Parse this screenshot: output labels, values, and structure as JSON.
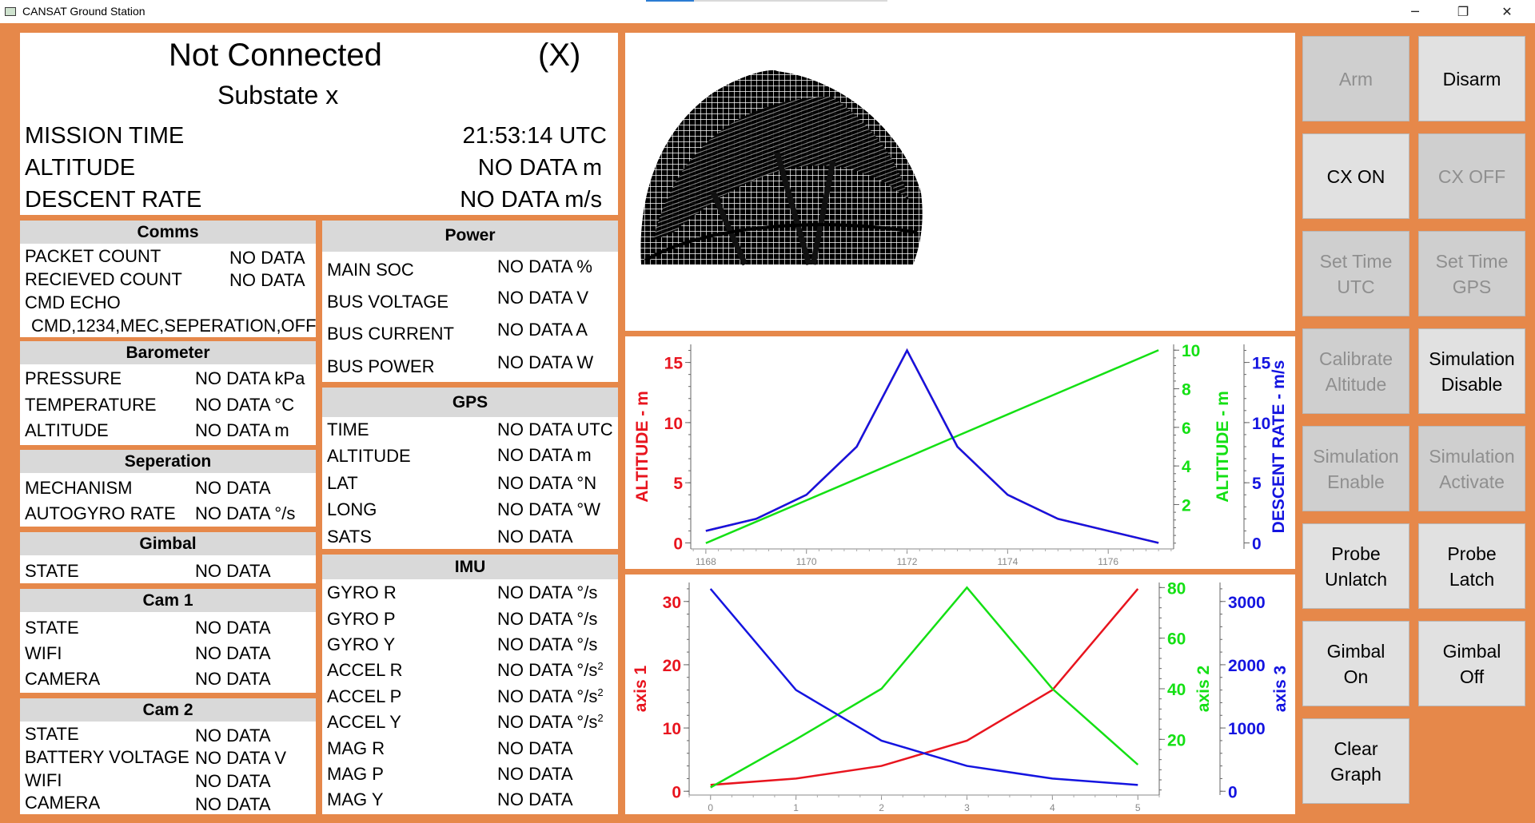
{
  "window": {
    "title": "CANSAT Ground Station",
    "minimize_glyph": "─",
    "maximize_glyph": "❐",
    "close_glyph": "✕"
  },
  "status": {
    "connection": "Not Connected",
    "state_flag": "(X)",
    "substate": "Substate x",
    "rows": [
      {
        "label": "MISSION TIME",
        "value": "21:53:14 UTC"
      },
      {
        "label": "ALTITUDE",
        "value": "NO DATA m"
      },
      {
        "label": "DESCENT RATE",
        "value": "NO DATA m/s"
      }
    ]
  },
  "comms": {
    "title": "Comms",
    "packet_count_label": "PACKET COUNT",
    "packet_count_value": "NO DATA",
    "recieved_count_label": "RECIEVED COUNT",
    "recieved_count_value": "NO DATA",
    "cmd_echo_label": "CMD ECHO",
    "cmd_echo_value": "CMD,1234,MEC,SEPERATION,OFF"
  },
  "barometer": {
    "title": "Barometer",
    "rows": [
      {
        "label": "PRESSURE",
        "value": "NO DATA kPa"
      },
      {
        "label": "TEMPERATURE",
        "value": "NO DATA °C"
      },
      {
        "label": "ALTITUDE",
        "value": "NO DATA m"
      }
    ]
  },
  "seperation": {
    "title": "Seperation",
    "rows": [
      {
        "label": "MECHANISM",
        "value": "NO DATA"
      },
      {
        "label": "AUTOGYRO RATE",
        "value": "NO DATA °/s"
      }
    ]
  },
  "gimbal": {
    "title": "Gimbal",
    "rows": [
      {
        "label": "STATE",
        "value": "NO DATA"
      }
    ]
  },
  "cam1": {
    "title": "Cam 1",
    "rows": [
      {
        "label": "STATE",
        "value": "NO DATA"
      },
      {
        "label": "WIFI",
        "value": "NO DATA"
      },
      {
        "label": "CAMERA",
        "value": "NO DATA"
      }
    ]
  },
  "cam2": {
    "title": "Cam 2",
    "rows": [
      {
        "label": "STATE",
        "value": "NO DATA"
      },
      {
        "label": "BATTERY VOLTAGE",
        "value": "NO DATA V"
      },
      {
        "label": "WIFI",
        "value": "NO DATA"
      },
      {
        "label": "CAMERA",
        "value": "NO DATA"
      }
    ]
  },
  "power": {
    "title": "Power",
    "rows": [
      {
        "label": "MAIN SOC",
        "value": "NO DATA %"
      },
      {
        "label": "BUS VOLTAGE",
        "value": "NO DATA V"
      },
      {
        "label": "BUS CURRENT",
        "value": "NO DATA A"
      },
      {
        "label": "BUS POWER",
        "value": "NO DATA W"
      }
    ]
  },
  "gps": {
    "title": "GPS",
    "rows": [
      {
        "label": "TIME",
        "value": "NO DATA UTC"
      },
      {
        "label": "ALTITUDE",
        "value": "NO DATA m"
      },
      {
        "label": "LAT",
        "value": "NO DATA °N"
      },
      {
        "label": "LONG",
        "value": "NO DATA °W"
      },
      {
        "label": "SATS",
        "value": "NO DATA"
      }
    ]
  },
  "imu": {
    "title": "IMU",
    "rows": [
      {
        "label": "GYRO R",
        "value": "NO DATA °/s"
      },
      {
        "label": "GYRO P",
        "value": "NO DATA °/s"
      },
      {
        "label": "GYRO Y",
        "value": "NO DATA °/s"
      },
      {
        "label": "ACCEL R",
        "value": "NO DATA °/s",
        "sup": "2"
      },
      {
        "label": "ACCEL P",
        "value": "NO DATA °/s",
        "sup": "2"
      },
      {
        "label": "ACCEL Y",
        "value": "NO DATA °/s",
        "sup": "2"
      },
      {
        "label": "MAG R",
        "value": "NO DATA"
      },
      {
        "label": "MAG P",
        "value": "NO DATA"
      },
      {
        "label": "MAG Y",
        "value": "NO DATA"
      }
    ]
  },
  "buttons": [
    {
      "label": "Arm",
      "enabled": false,
      "name": "arm-button"
    },
    {
      "label": "Disarm",
      "enabled": true,
      "name": "disarm-button"
    },
    {
      "label": "CX ON",
      "enabled": true,
      "name": "cx-on-button"
    },
    {
      "label": "CX OFF",
      "enabled": false,
      "name": "cx-off-button"
    },
    {
      "label": "Set Time\nUTC",
      "enabled": false,
      "name": "set-time-utc-button"
    },
    {
      "label": "Set Time\nGPS",
      "enabled": false,
      "name": "set-time-gps-button"
    },
    {
      "label": "Calibrate\nAltitude",
      "enabled": false,
      "name": "calibrate-altitude-button"
    },
    {
      "label": "Simulation\nDisable",
      "enabled": true,
      "name": "simulation-disable-button"
    },
    {
      "label": "Simulation\nEnable",
      "enabled": false,
      "name": "simulation-enable-button"
    },
    {
      "label": "Simulation\nActivate",
      "enabled": false,
      "name": "simulation-activate-button"
    },
    {
      "label": "Probe\nUnlatch",
      "enabled": true,
      "name": "probe-unlatch-button"
    },
    {
      "label": "Probe\nLatch",
      "enabled": true,
      "name": "probe-latch-button"
    },
    {
      "label": "Gimbal\nOn",
      "enabled": true,
      "name": "gimbal-on-button"
    },
    {
      "label": "Gimbal\nOff",
      "enabled": true,
      "name": "gimbal-off-button"
    },
    {
      "label": "Clear\nGraph",
      "enabled": true,
      "name": "clear-graph-button"
    }
  ],
  "colors": {
    "frame": "#e6884a",
    "red": "#e8141e",
    "green": "#14e014",
    "blue": "#1414e0"
  },
  "chart_data": [
    {
      "type": "line",
      "x": [
        1168,
        1169,
        1170,
        1171,
        1172,
        1173,
        1174,
        1175,
        1176,
        1177
      ],
      "xticks": [
        "1168",
        "1170",
        "1172",
        "1174",
        "1176"
      ],
      "xlim": [
        1167.7,
        1177.3
      ],
      "series": [
        {
          "axis": "left",
          "color": "red",
          "values": [
            1,
            2,
            4,
            8,
            16,
            8,
            4,
            2,
            1,
            0
          ],
          "ylim": [
            -0.5,
            16.5
          ],
          "ticks": [
            "0",
            "5",
            "10",
            "15"
          ],
          "ylabel": "ALTITUDE - m"
        },
        {
          "axis": "right1",
          "color": "green",
          "values": [
            0,
            1.11,
            2.22,
            3.33,
            4.44,
            5.56,
            6.67,
            7.78,
            8.89,
            10
          ],
          "ylim": [
            -0.3,
            10.3
          ],
          "ticks": [
            "2",
            "4",
            "6",
            "8",
            "10"
          ],
          "ylabel": "ALTITUDE - m"
        },
        {
          "axis": "right2",
          "color": "blue",
          "values": [
            1,
            2,
            4,
            8,
            16,
            8,
            4,
            2,
            1,
            0
          ],
          "ylim": [
            -0.5,
            16.5
          ],
          "ticks": [
            "0",
            "5",
            "10",
            "15"
          ],
          "ylabel": "DESCENT RATE - m/s"
        }
      ]
    },
    {
      "type": "line",
      "x": [
        0,
        1,
        2,
        3,
        4,
        5
      ],
      "xticks": [
        "0",
        "1",
        "2",
        "3",
        "4",
        "5"
      ],
      "xlim": [
        -0.25,
        5.25
      ],
      "series": [
        {
          "axis": "left",
          "color": "red",
          "values": [
            1,
            2,
            4,
            8,
            16,
            32
          ],
          "ylim": [
            -0.6,
            33
          ],
          "ticks": [
            "0",
            "10",
            "20",
            "30"
          ],
          "ylabel": "axis 1"
        },
        {
          "axis": "right1",
          "color": "green",
          "values": [
            1,
            20,
            40,
            80,
            40,
            10
          ],
          "ylim": [
            -2,
            82
          ],
          "ticks": [
            "20",
            "40",
            "60",
            "80"
          ],
          "ylabel": "axis 2"
        },
        {
          "axis": "right2",
          "color": "blue",
          "values": [
            3200,
            1600,
            800,
            400,
            200,
            100
          ],
          "ylim": [
            -60,
            3300
          ],
          "ticks": [
            "0",
            "1000",
            "2000",
            "3000"
          ],
          "ylabel": "axis 3"
        }
      ]
    }
  ]
}
